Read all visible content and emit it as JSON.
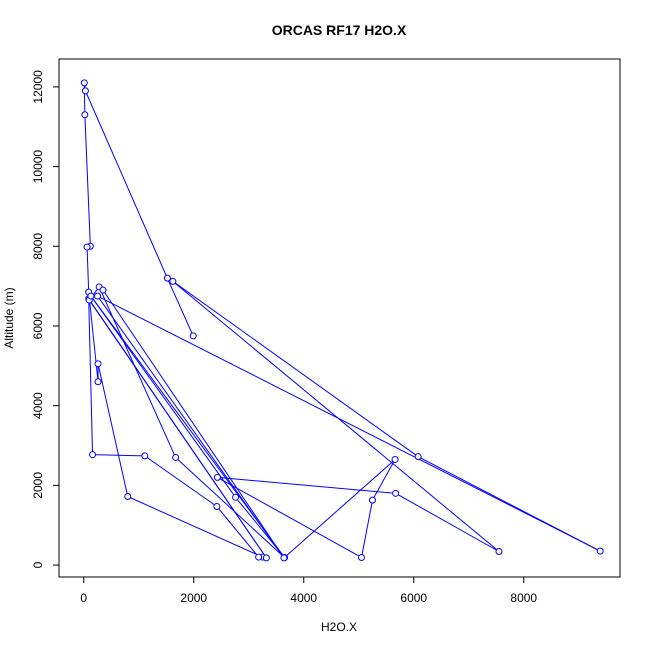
{
  "chart_data": {
    "type": "line",
    "title": "ORCAS RF17 H2O.X",
    "xlabel": "H2O.X",
    "ylabel": "Altitude (m)",
    "xlim": [
      -450,
      9750
    ],
    "ylim": [
      -300,
      12700
    ],
    "x_ticks": [
      0,
      2000,
      4000,
      6000,
      8000
    ],
    "y_ticks": [
      0,
      2000,
      4000,
      6000,
      8000,
      10000,
      12000
    ],
    "x_tick_labels": [
      "0",
      "2000",
      "4000",
      "6000",
      "8000"
    ],
    "y_tick_labels": [
      "0",
      "2000",
      "4000",
      "6000",
      "8000",
      "10000",
      "12000"
    ],
    "grid": false,
    "color": "#0000ff",
    "series": [
      {
        "x": [
          1990,
          1520,
          30,
          10,
          20,
          120,
          60,
          90,
          260,
          260,
          800,
          3250,
          3180,
          2420,
          1110,
          160,
          90,
          3320,
          100,
          280,
          1670,
          3650,
          130,
          2760,
          3650,
          5660,
          5250,
          5050,
          2430,
          5670,
          7550,
          1620,
          6080,
          9390,
          250,
          3640,
          350
        ],
        "y": [
          5750,
          7200,
          11900,
          12100,
          11300,
          8000,
          7980,
          6850,
          4600,
          5050,
          1720,
          200,
          200,
          1470,
          2740,
          2770,
          6680,
          180,
          6650,
          6980,
          2700,
          190,
          6750,
          1700,
          190,
          2650,
          1630,
          190,
          2200,
          1800,
          340,
          7120,
          2720,
          350,
          6750,
          180,
          6900
        ]
      }
    ]
  }
}
